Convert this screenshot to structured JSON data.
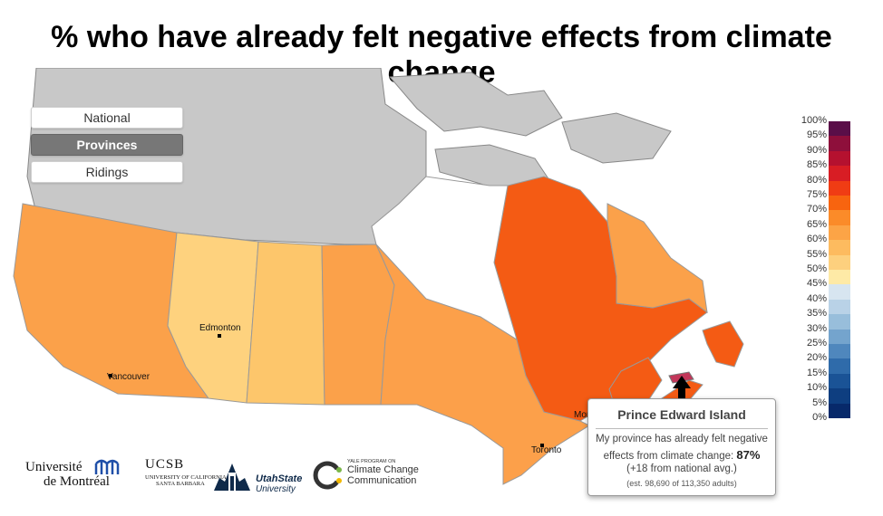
{
  "title": "% who have already felt negative effects from climate change",
  "controls": [
    {
      "label": "National",
      "active": false
    },
    {
      "label": "Provinces",
      "active": true
    },
    {
      "label": "Ridings",
      "active": false
    }
  ],
  "legend": {
    "labels": [
      "100%",
      "95%",
      "90%",
      "85%",
      "80%",
      "75%",
      "70%",
      "65%",
      "60%",
      "55%",
      "50%",
      "45%",
      "40%",
      "35%",
      "30%",
      "25%",
      "20%",
      "15%",
      "10%",
      "5%",
      "0%"
    ],
    "colors": [
      "#5a0e48",
      "#8e0f3b",
      "#b5112f",
      "#d81d24",
      "#f03c14",
      "#f8640f",
      "#fb8b29",
      "#fca446",
      "#fdbb5f",
      "#fdd07e",
      "#feeaa6",
      "#d7e5f0",
      "#b9d2e7",
      "#98bedb",
      "#74a4cd",
      "#4f87bd",
      "#2f6baa",
      "#1a5396",
      "#0e3e80",
      "#07296a"
    ]
  },
  "map": {
    "cities": [
      "Edmonton",
      "Vancouver",
      "Montréal",
      "Toronto"
    ],
    "colors": {
      "territories": "#c8c8c8",
      "bc": "#fba14a",
      "alberta": "#fed27e",
      "saskatchewan": "#fdc66b",
      "manitoba": "#fba14a",
      "ontario": "#fca04a",
      "quebec": "#f45b14",
      "labrador": "#fba14a",
      "maritimes": "#f45b14",
      "pei": "#c2375a",
      "water": "#ffffff"
    }
  },
  "tooltip": {
    "title": "Prince Edward Island",
    "line1": "My province has already felt negative",
    "line2_prefix": "effects from climate change:",
    "value": "87%",
    "line3": "(+18 from national avg.)",
    "line4": "(est. 98,690 of 113,350 adults)"
  },
  "logos": {
    "udem": [
      "Université",
      "de Montréal"
    ],
    "ucsb": [
      "UCSB",
      "UNIVERSITY OF CALIFORNIA",
      "SANTA BARBARA"
    ],
    "usu": [
      "UtahState",
      "University"
    ],
    "yale": [
      "YALE PROGRAM ON",
      "Climate Change",
      "Communication"
    ]
  }
}
